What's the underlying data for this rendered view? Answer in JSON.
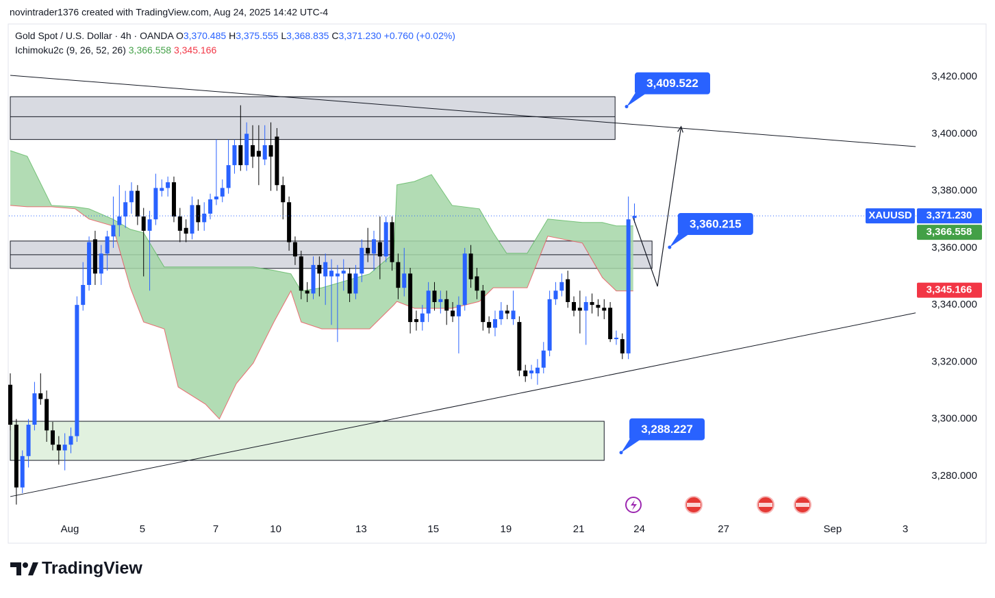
{
  "chart_data": {
    "type": "candlestick",
    "attribution": "novintrader1376 created with TradingView.com, Aug 24, 2025 14:42 UTC-4",
    "symbol": "Gold Spot / U.S. Dollar · 4h · OANDA",
    "ohlc_legend": [
      {
        "key": "O",
        "value": "3,370.485"
      },
      {
        "key": "H",
        "value": "3,375.555"
      },
      {
        "key": "L",
        "value": "3,368.835"
      },
      {
        "key": "C",
        "value": "3,371.230"
      }
    ],
    "change": "+0.760 (+0.02%)",
    "indicator": {
      "name": "Ichimoku2c (9, 26, 52, 26)",
      "values": [
        "3,366.558",
        "3,345.166"
      ],
      "colors": [
        "#43a047",
        "#f23645"
      ]
    },
    "up_color": "#2962ff",
    "down_color": "#000000",
    "candles": {
      "open": [
        3312,
        3298,
        3276,
        3287,
        3298,
        3309,
        3307,
        3296,
        3291,
        3289,
        3291,
        3294,
        3340,
        3347,
        3363,
        3351,
        3358,
        3364,
        3368,
        3371,
        3376,
        3380,
        3371,
        3366,
        3370,
        3380,
        3381,
        3383,
        3371,
        3367,
        3365,
        3375,
        3369,
        3372,
        3377,
        3378,
        3381,
        3389,
        3396,
        3389,
        3396,
        3394,
        3391,
        3396,
        3399,
        3382,
        3376,
        3362,
        3357,
        3345,
        3344,
        3354,
        3350,
        3350,
        3350,
        3351,
        3351,
        3344,
        3351,
        3360,
        3358,
        3362,
        3357,
        3369,
        3355,
        3346,
        3351,
        3335,
        3334,
        3337,
        3345,
        3341,
        3342,
        3338,
        3336,
        3340,
        3358,
        3350,
        3345,
        3334,
        3332,
        3335,
        3338,
        3335,
        3334,
        3317,
        3316,
        3316,
        3318,
        3324,
        3342,
        3345,
        3349,
        3341,
        3339,
        3338,
        3341,
        3340,
        3339,
        3339,
        3328,
        3328,
        3323,
        3370.485
      ],
      "high": [
        3316,
        3300,
        3289,
        3300,
        3313,
        3316,
        3310,
        3299,
        3294,
        3295,
        3297,
        3343,
        3355,
        3364,
        3366,
        3361,
        3366,
        3378,
        3382,
        3380,
        3383,
        3382,
        3374,
        3373,
        3386,
        3384,
        3385,
        3385,
        3374,
        3370,
        3378,
        3377,
        3376,
        3379,
        3398,
        3384,
        3398,
        3398,
        3410,
        3404,
        3403,
        3403,
        3403,
        3404,
        3402,
        3385,
        3378,
        3364,
        3359,
        3348,
        3357,
        3357,
        3358,
        3356,
        3354,
        3356,
        3353,
        3354,
        3363,
        3367,
        3366,
        3371,
        3371,
        3371,
        3358,
        3360,
        3353,
        3338,
        3340,
        3348,
        3348,
        3345,
        3345,
        3341,
        3343,
        3360,
        3361,
        3353,
        3347,
        3336,
        3338,
        3341,
        3340,
        3345,
        3336,
        3319,
        3319,
        3321,
        3327,
        3345,
        3348,
        3351,
        3352,
        3343,
        3345,
        3343,
        3344,
        3342,
        3342,
        3341,
        3331,
        3330,
        3378,
        3375.555
      ],
      "low": [
        3296,
        3270,
        3274,
        3283,
        3296,
        3305,
        3292,
        3289,
        3284,
        3282,
        3288,
        3292,
        3338,
        3345,
        3347,
        3347,
        3352,
        3360,
        3364,
        3367,
        3372,
        3368,
        3350,
        3345,
        3368,
        3378,
        3378,
        3369,
        3362,
        3362,
        3363,
        3366,
        3366,
        3370,
        3375,
        3376,
        3379,
        3386,
        3387,
        3387,
        3388,
        3382,
        3389,
        3380,
        3380,
        3370,
        3359,
        3354,
        3342,
        3341,
        3342,
        3343,
        3340,
        3333,
        3327,
        3345,
        3341,
        3342,
        3348,
        3355,
        3352,
        3349,
        3355,
        3352,
        3342,
        3343,
        3330,
        3331,
        3331,
        3334,
        3338,
        3337,
        3333,
        3334,
        3323,
        3338,
        3346,
        3342,
        3331,
        3330,
        3329,
        3333,
        3335,
        3333,
        3315,
        3313,
        3314,
        3312,
        3316,
        3322,
        3340,
        3343,
        3339,
        3336,
        3330,
        3326,
        3337,
        3336,
        3335,
        3327,
        3326,
        3321,
        3321,
        3368.835
      ],
      "close": [
        3298,
        3276,
        3287,
        3298,
        3309,
        3307,
        3296,
        3291,
        3289,
        3291,
        3294,
        3340,
        3347,
        3362,
        3351,
        3358,
        3364,
        3368,
        3371,
        3376,
        3380,
        3371,
        3366,
        3370,
        3381,
        3381,
        3383,
        3371,
        3366,
        3365,
        3375,
        3369,
        3372,
        3377,
        3378,
        3381,
        3389,
        3396,
        3389,
        3400,
        3392,
        3392,
        3396,
        3392,
        3382,
        3376,
        3362,
        3357,
        3345,
        3344,
        3354,
        3351,
        3355,
        3352,
        3351,
        3352,
        3344,
        3351,
        3360,
        3358,
        3363,
        3357,
        3369,
        3355,
        3346,
        3351,
        3334,
        3334,
        3337,
        3345,
        3341,
        3342,
        3338,
        3336,
        3340,
        3358,
        3349,
        3345,
        3334,
        3332,
        3335,
        3338,
        3337,
        3338,
        3317,
        3315,
        3317,
        3318,
        3324,
        3342,
        3345,
        3348,
        3341,
        3338,
        3338,
        3341,
        3340,
        3339,
        3338,
        3328,
        3328.5,
        3323,
        3370,
        3371.23
      ]
    },
    "cloud": {
      "x": [
        0,
        2.8,
        6.8,
        10.7,
        13,
        16.9,
        19.8,
        22,
        25.4,
        27.7,
        32.2,
        34.5,
        37.3,
        40.1,
        43.5,
        46.3,
        48,
        51.4,
        59.3,
        63.3,
        63.8,
        66.7,
        69.5,
        72.9,
        77.4,
        79.7,
        81.9,
        85.3,
        88.7,
        94.4,
        97.7,
        100,
        102.8
      ],
      "span_a": [
        3394.1,
        3392.1,
        3374.9,
        3374.4,
        3373.7,
        3370.1,
        3366.5,
        3365.3,
        3353.3,
        3353.3,
        3353.3,
        3353.3,
        3353.3,
        3353.3,
        3352.1,
        3350.9,
        3344.9,
        3346,
        3350.9,
        3358.1,
        3382.1,
        3383.3,
        3385.7,
        3374.9,
        3373.7,
        3365.3,
        3358.1,
        3358.1,
        3370.1,
        3368.9,
        3368.9,
        3367.7,
        3367.7
      ],
      "span_b": [
        3374.9,
        3374.4,
        3374.4,
        3373.7,
        3370.1,
        3367.7,
        3346,
        3334,
        3331.6,
        3311.2,
        3305.2,
        3300,
        3312.4,
        3319.6,
        3334,
        3344.9,
        3334,
        3331.6,
        3331.6,
        3340,
        3341.2,
        3338.8,
        3338.8,
        3338.8,
        3341.2,
        3346,
        3346,
        3346,
        3364.1,
        3361.7,
        3349.6,
        3344.9,
        3344.9
      ],
      "fill": "#a5d6a7",
      "color_a": "#4caf50",
      "color_b": "#f23645"
    },
    "zones": [
      {
        "from": 0,
        "to": 99.8,
        "high": 3413,
        "low": 3398,
        "mid": 3406,
        "color": "#d1d4dc"
      },
      {
        "from": 0,
        "to": 105.9,
        "high": 3362.4,
        "low": 3352.8,
        "mid": 3357.6,
        "color": "#d1d4dc"
      },
      {
        "from": 0,
        "to": 98,
        "high": 3299.2,
        "low": 3285.5,
        "color": "#dcefd9"
      }
    ],
    "trend_lines": [
      {
        "x": [
          0,
          149.4
        ],
        "y": [
          3420.5,
          3395.5
        ]
      },
      {
        "x": [
          0,
          149.4
        ],
        "y": [
          3272.8,
          3337.2
        ]
      }
    ],
    "projection": {
      "x": [
        102.8,
        106.8,
        110.7
      ],
      "y": [
        3370.5,
        3346.5,
        3402.5
      ]
    },
    "callouts": [
      {
        "x": 101.7,
        "value": 3409.522,
        "label": "3,409.522"
      },
      {
        "x": 108.8,
        "value": 3360.215,
        "label": "3,360.215"
      },
      {
        "x": 100.8,
        "value": 3288.227,
        "label": "3,288.227"
      }
    ],
    "callout_color": "#2962ff",
    "symbol_tag": "XAUUSD",
    "price_labels": [
      {
        "value": 3371.23,
        "label": "3,371.230",
        "color": "#2962ff"
      },
      {
        "value": 3366.558,
        "label": "3,366.558",
        "color": "#43a047"
      },
      {
        "value": 3345.166,
        "label": "3,345.166",
        "color": "#f23645"
      }
    ],
    "xlim": [
      -0.23,
      149.5
    ],
    "xticks": [
      {
        "value": 9.83,
        "label": "Aug"
      },
      {
        "value": 21.8,
        "label": "5"
      },
      {
        "value": 33.9,
        "label": "7"
      },
      {
        "value": 43.8,
        "label": "10"
      },
      {
        "value": 57.9,
        "label": "13"
      },
      {
        "value": 69.8,
        "label": "15"
      },
      {
        "value": 81.8,
        "label": "19"
      },
      {
        "value": 93.8,
        "label": "21"
      },
      {
        "value": 103.8,
        "label": "24"
      },
      {
        "value": 117.7,
        "label": "27"
      },
      {
        "value": 135.7,
        "label": "Sep"
      },
      {
        "value": 147.7,
        "label": "3"
      }
    ],
    "ylim": [
      3265.1,
      3438.5
    ],
    "yticks": [
      {
        "value": 3280,
        "label": "3,280.000"
      },
      {
        "value": 3300,
        "label": "3,300.000"
      },
      {
        "value": 3320,
        "label": "3,320.000"
      },
      {
        "value": 3340,
        "label": "3,340.000"
      },
      {
        "value": 3360,
        "label": "3,360.000"
      },
      {
        "value": 3380,
        "label": "3,380.000"
      },
      {
        "value": 3400,
        "label": "3,400.000"
      },
      {
        "value": 3420,
        "label": "3,420.000"
      }
    ],
    "grid": false,
    "brand": "TradingView"
  }
}
